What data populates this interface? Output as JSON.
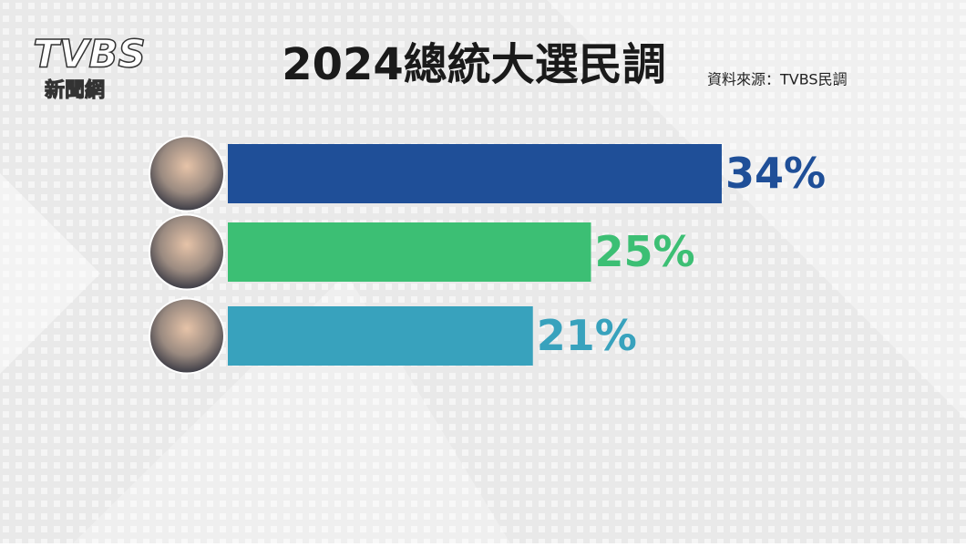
{
  "logo": {
    "name": "TVBS",
    "tagline": "新聞網"
  },
  "chart_data": {
    "type": "bar",
    "orientation": "horizontal",
    "title": "2024總統大選民調",
    "source": "資料來源：TVBS民調",
    "categories": [
      null,
      null,
      null
    ],
    "values": [
      34,
      25,
      21
    ],
    "value_labels": [
      "34%",
      "25%",
      "21%"
    ],
    "colors": [
      "#1f4f98",
      "#3cbf74",
      "#38a2bd"
    ]
  }
}
